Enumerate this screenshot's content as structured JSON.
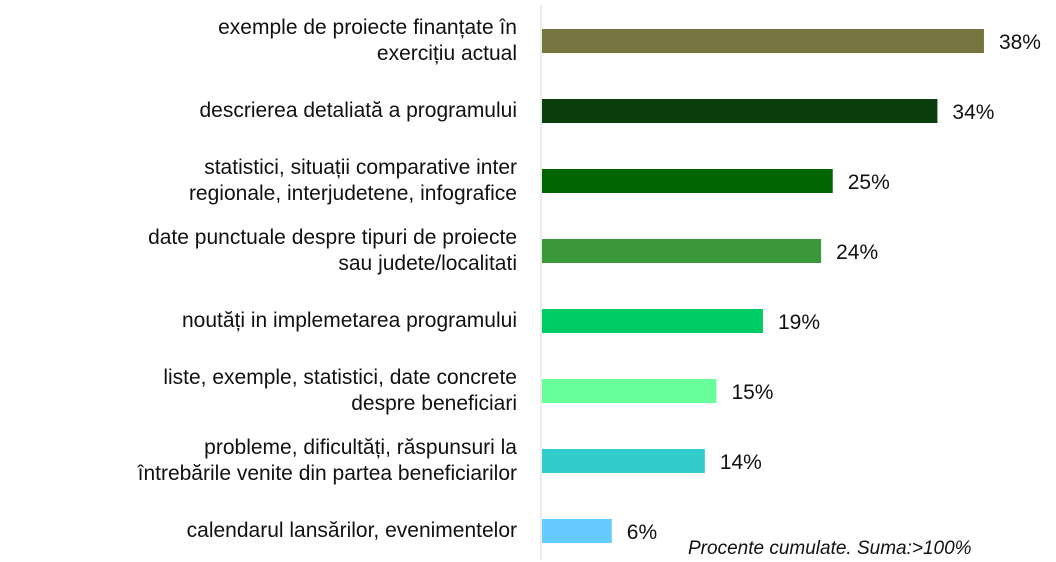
{
  "chart_data": {
    "type": "hbar",
    "categories": [
      "exemple de proiecte finanțate în\nexercițiu actual",
      "descrierea detaliată a programului",
      "statistici, situații comparative inter\nregionale, interjudetene,  infografice",
      "date punctuale despre tipuri de proiecte\nsau judete/localitati",
      "noutăți in implemetarea programului",
      "liste, exemple, statistici, date concrete\ndespre beneficiari",
      "probleme, dificultăți, răspunsuri la\nîntrebările venite din partea beneficiarilor",
      "calendarul lansărilor, evenimentelor"
    ],
    "values": [
      38,
      34,
      25,
      24,
      19,
      15,
      14,
      6
    ],
    "value_labels": [
      "38%",
      "34%",
      "25%",
      "24%",
      "19%",
      "15%",
      "14%",
      "6%"
    ],
    "colors": [
      "#76753f",
      "#0c3d0c",
      "#006400",
      "#3a983a",
      "#00cc66",
      "#66ff99",
      "#33cccc",
      "#66ccff"
    ],
    "note": "Procente cumulate. Suma:>100%"
  }
}
